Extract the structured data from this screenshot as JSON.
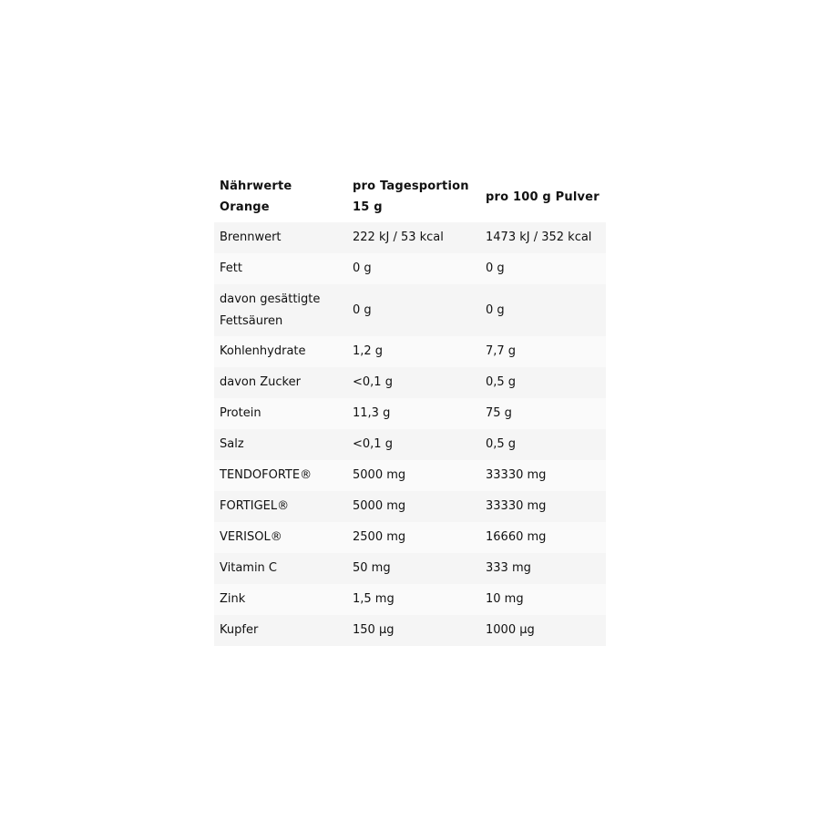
{
  "table": {
    "headers": [
      "Nährwerte Orange",
      "pro Tagesportion 15 g",
      "pro 100 g Pulver"
    ],
    "rows": [
      [
        "Brennwert",
        "222 kJ / 53 kcal",
        "1473 kJ / 352 kcal"
      ],
      [
        "Fett",
        "0 g",
        "0 g"
      ],
      [
        "davon gesättigte Fettsäuren",
        "0 g",
        "0 g"
      ],
      [
        "Kohlenhydrate",
        "1,2 g",
        "7,7 g"
      ],
      [
        "davon Zucker",
        "<0,1 g",
        "0,5 g"
      ],
      [
        "Protein",
        "11,3 g",
        "75 g"
      ],
      [
        "Salz",
        "<0,1 g",
        "0,5 g"
      ],
      [
        "TENDOFORTE®",
        "5000 mg",
        "33330 mg"
      ],
      [
        "FORTIGEL®",
        "5000 mg",
        "33330 mg"
      ],
      [
        "VERISOL®",
        "2500 mg",
        "16660 mg"
      ],
      [
        "Vitamin C",
        "50 mg",
        "333 mg"
      ],
      [
        "Zink",
        "1,5 mg",
        "10 mg"
      ],
      [
        "Kupfer",
        "150 µg",
        "1000 µg"
      ]
    ]
  }
}
